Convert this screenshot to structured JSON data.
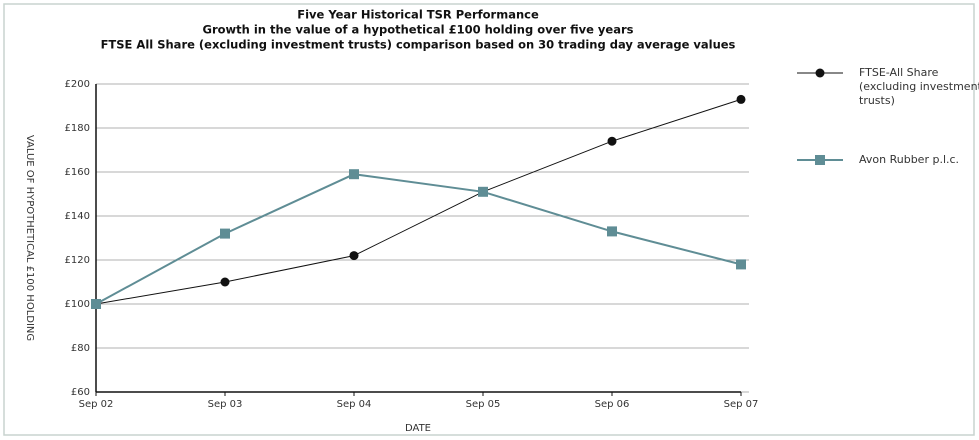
{
  "chart_data": {
    "type": "line",
    "title": "Five Year Historical TSR Performance",
    "subtitle": [
      "Growth in the value of a hypothetical £100 holding over five years",
      "FTSE All Share (excluding investment trusts) comparison based on 30 trading day average values"
    ],
    "x_label": "DATE",
    "y_label": "VALUE OF HYPOTHETICAL £100 HOLDING",
    "categories": [
      "Sep 02",
      "Sep 03",
      "Sep 04",
      "Sep 05",
      "Sep 06",
      "Sep 07"
    ],
    "series": [
      {
        "name": "FTSE-All Share (excluding investment trusts)",
        "color": "#111111",
        "marker": "circle",
        "values": [
          100,
          110,
          122,
          151,
          174,
          193
        ]
      },
      {
        "name": "Avon Rubber p.l.c.",
        "color": "#5f8d95",
        "marker": "square",
        "values": [
          100,
          132,
          159,
          151,
          133,
          118
        ]
      }
    ],
    "ylim": [
      60,
      200
    ],
    "yticks": [
      {
        "value": 60,
        "label": "£60"
      },
      {
        "value": 80,
        "label": "£80"
      },
      {
        "value": 100,
        "label": "£100"
      },
      {
        "value": 120,
        "label": "£120"
      },
      {
        "value": 140,
        "label": "£140"
      },
      {
        "value": 160,
        "label": "£160"
      },
      {
        "value": 180,
        "label": "£180"
      },
      {
        "value": 200,
        "label": "£200"
      }
    ],
    "grid": true,
    "legend": "right"
  }
}
